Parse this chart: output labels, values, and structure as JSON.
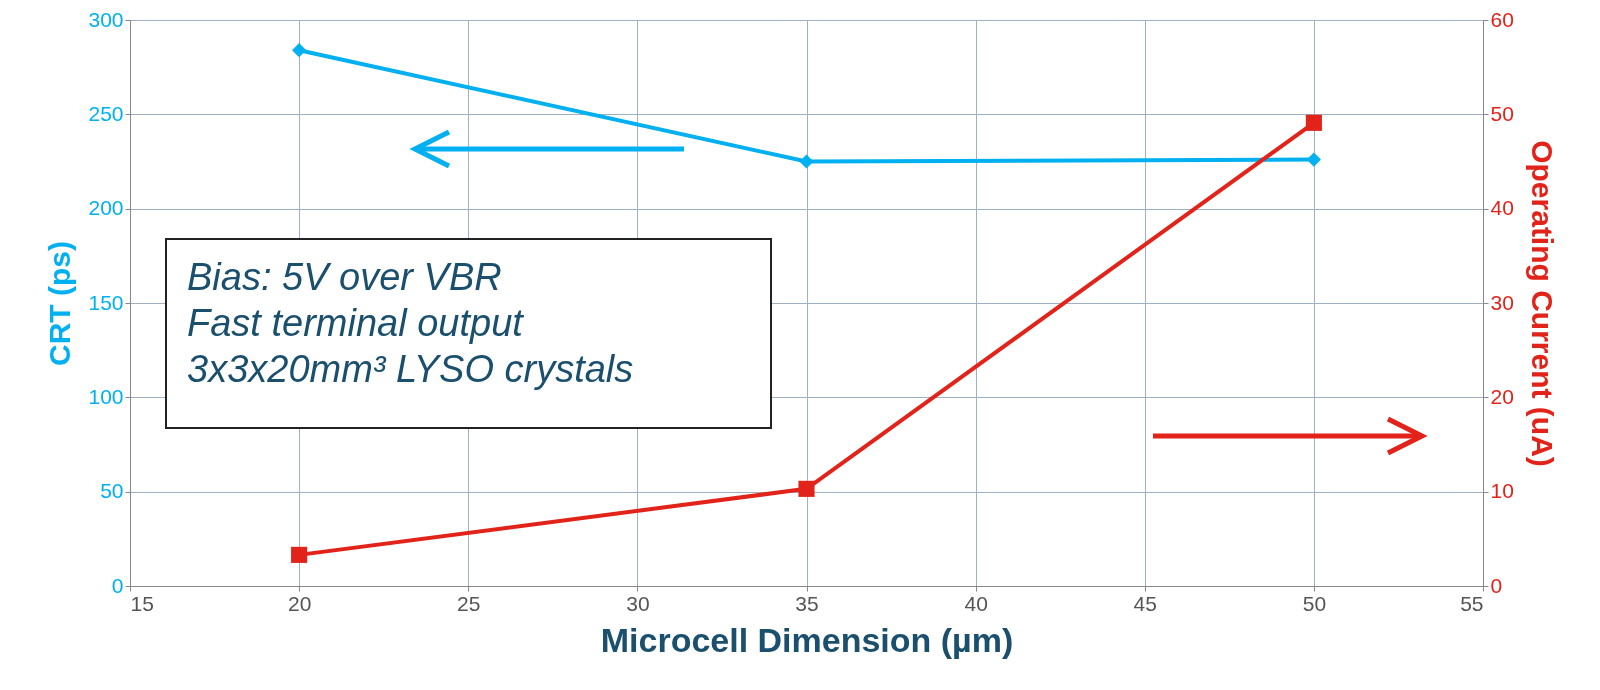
{
  "chart_data": {
    "type": "line",
    "xlabel": "Microcell Dimension (µm)",
    "ylabel": "CRT (ps)",
    "y2label": "Operating Current (uA)",
    "x": [
      20,
      35,
      50
    ],
    "series": [
      {
        "color": "#00b0f0",
        "marker": "diamond",
        "values": [
          284,
          225,
          226
        ]
      },
      {
        "color": "#e2231a",
        "marker": "square",
        "axis": "y2",
        "values": [
          3.3,
          10.3,
          49.1
        ]
      }
    ],
    "xlim": [
      15,
      55
    ],
    "xticks": [
      15,
      20,
      25,
      30,
      35,
      40,
      45,
      50,
      55
    ],
    "ylim": [
      0,
      300
    ],
    "yticks": [
      0,
      50,
      100,
      150,
      200,
      250,
      300
    ],
    "y2lim": [
      0,
      60
    ],
    "y2ticks": [
      0,
      10,
      20,
      30,
      40,
      50,
      60
    ],
    "grid": true,
    "annotations": [
      "Bias: 5V over VBR",
      "Fast terminal output",
      "3x3x20mm³ LYSO crystals"
    ]
  }
}
